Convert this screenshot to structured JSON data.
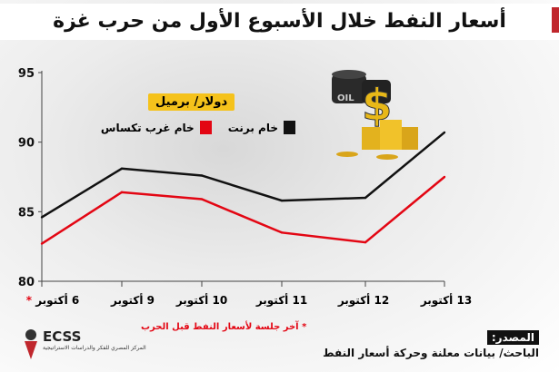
{
  "title": "أسعار النفط خلال الأسبوع الأول من حرب غزة",
  "unit_label": "دولار/ برميل",
  "footnote": "آخر جلسة لأسعار النفط قبل الحرب",
  "footnote_marker": "*",
  "source_label": "المصدر:",
  "source_text": "الباحث/ بيانات معلنة وحركة أسعار النفط",
  "logo": {
    "name": "ECSS",
    "subtitle": "المركز المصري للفكر والدراسات الاستراتيجية"
  },
  "chart_data": {
    "type": "line",
    "categories": [
      "6 أكتوبر",
      "9 أكتوبر",
      "10 أكتوبر",
      "11 أكتوبر",
      "12 أكتوبر",
      "13 أكتوبر"
    ],
    "series": [
      {
        "name": "خام برنت",
        "color": "#111111",
        "values": [
          84.6,
          88.1,
          87.6,
          85.8,
          86.0,
          90.7
        ]
      },
      {
        "name": "خام غرب تكساس",
        "color": "#e30613",
        "values": [
          82.7,
          86.4,
          85.9,
          83.5,
          82.8,
          87.5
        ]
      }
    ],
    "yticks": [
      80,
      85,
      90,
      95
    ],
    "ylim": [
      80,
      95
    ],
    "grid": false,
    "legend": "top-left",
    "xlabel": "",
    "ylabel": ""
  }
}
